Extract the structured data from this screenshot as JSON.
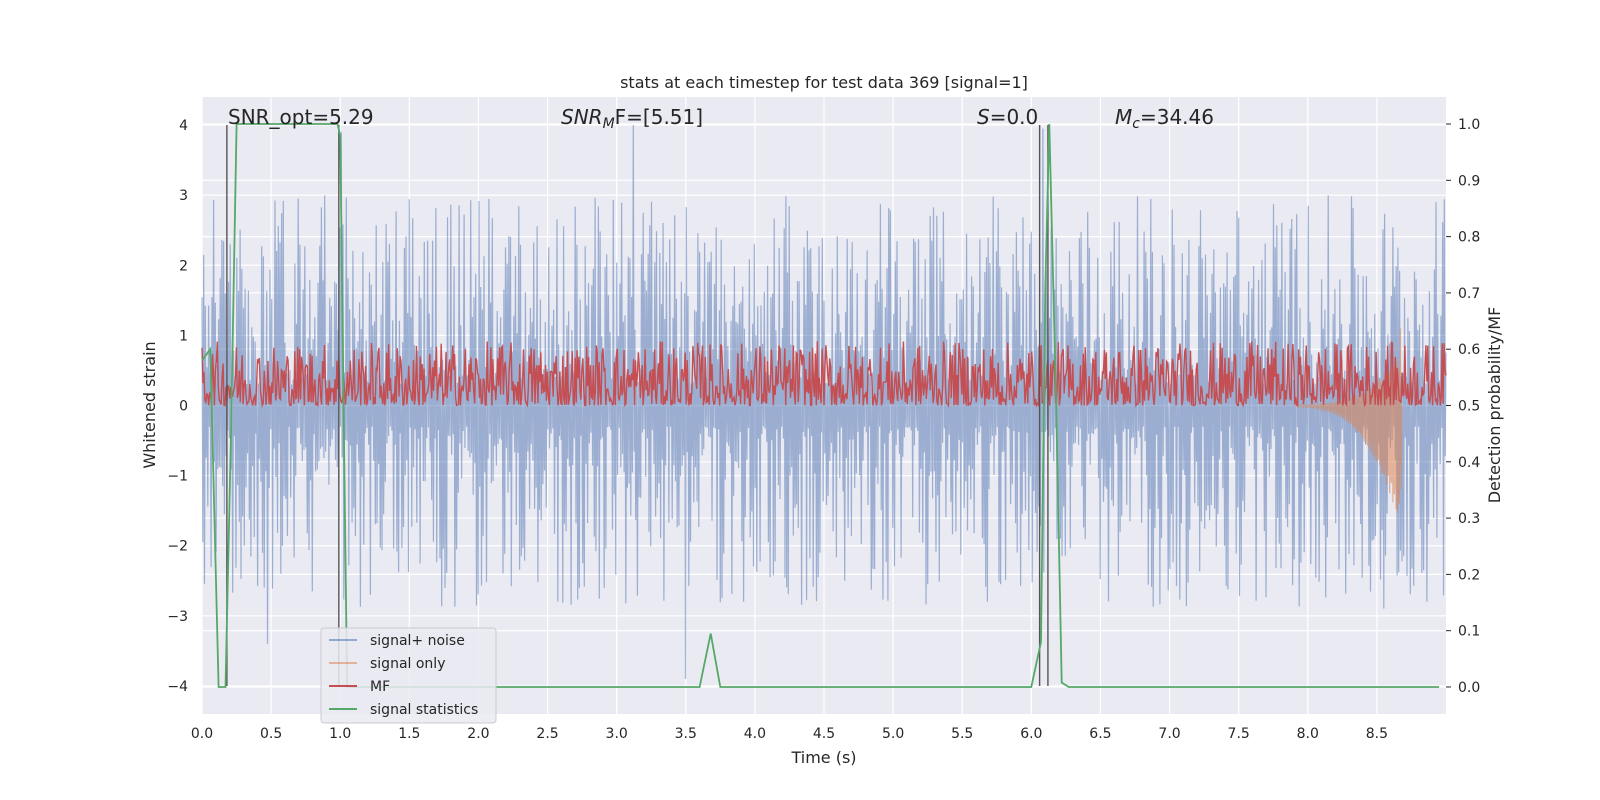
{
  "chart_data": {
    "type": "line",
    "title": "stats at each timestep for test data 369 [signal=1]",
    "xlabel": "Time (s)",
    "ylabel": "Whitened strain",
    "ylabel_right": "Detection probability/MF",
    "xlim": [
      0.0,
      9.0
    ],
    "ylim": [
      -4.4,
      4.4
    ],
    "ylim_right": [
      -0.048,
      1.048
    ],
    "x_ticks": [
      "0.0",
      "0.5",
      "1.0",
      "1.5",
      "2.0",
      "2.5",
      "3.0",
      "3.5",
      "4.0",
      "4.5",
      "5.0",
      "5.5",
      "6.0",
      "6.5",
      "7.0",
      "7.5",
      "8.0",
      "8.5"
    ],
    "y_ticks": [
      "4",
      "3",
      "2",
      "1",
      "0",
      "−1",
      "−2",
      "−3",
      "−4"
    ],
    "y_ticks_right": [
      "1.0",
      "0.9",
      "0.8",
      "0.7",
      "0.6",
      "0.5",
      "0.4",
      "0.3",
      "0.2",
      "0.1",
      "0.0"
    ],
    "annotations": {
      "snr_opt": "SNR_opt=5.29",
      "snr_mf_main": "SNR",
      "snr_mf_sub": "M",
      "snr_mf_rest": "F=[5.51]",
      "s_main": "S",
      "s_rest": "=0.0",
      "mc_main": "M",
      "mc_sub": "c",
      "mc_rest": "=34.46"
    },
    "legend": {
      "position": "lower-left",
      "entries": [
        "signal+ noise",
        "signal only",
        "MF",
        "signal statistics"
      ]
    },
    "colors": {
      "signal_noise": "#4c72b0",
      "signal_only": "#dd8452",
      "mf": "#c44e52",
      "stats": "#55a868",
      "vlines": "#555555",
      "background": "#eaeaf2"
    },
    "vertical_markers_s": [
      0.18,
      0.99,
      6.06,
      6.12
    ],
    "series": [
      {
        "name": "signal+ noise",
        "description_range": [
          -2.8,
          3.0
        ],
        "peaks": [
          [
            1.0,
            3.9
          ],
          [
            3.12,
            4.0
          ],
          [
            6.08,
            3.95
          ],
          [
            3.5,
            -3.9
          ],
          [
            0.47,
            -3.4
          ]
        ]
      },
      {
        "name": "signal only",
        "chirp_start_s": 7.9,
        "chirp_end_s": 8.67,
        "chirp_peak": 1.1,
        "chirp_trough": -1.2
      },
      {
        "name": "MF",
        "baseline_right": 0.5,
        "max_right": 0.62
      },
      {
        "name": "signal statistics",
        "x": [
          0.0,
          0.06,
          0.12,
          0.17,
          0.21,
          0.25,
          0.98,
          1.0,
          1.05,
          1.1,
          3.6,
          3.68,
          3.75,
          6.0,
          6.07,
          6.1,
          6.13,
          6.18,
          6.22,
          6.27,
          8.95
        ],
        "y": [
          0.58,
          0.6,
          0.0,
          0.0,
          0.45,
          1.0,
          1.0,
          0.98,
          0.0,
          0.0,
          0.0,
          0.095,
          0.0,
          0.0,
          0.08,
          0.7,
          1.0,
          0.5,
          0.008,
          0.0,
          0.0
        ]
      }
    ]
  }
}
